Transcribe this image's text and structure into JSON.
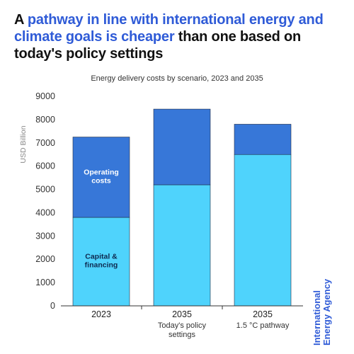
{
  "headline": {
    "lead": "A ",
    "highlight": "pathway in line with international energy and climate goals is cheaper",
    "tail": " than one based on today's policy settings"
  },
  "colors": {
    "highlight": "#2f5bd7",
    "capital": "#4fd3fc",
    "operating": "#3777d8"
  },
  "chart_data": {
    "type": "bar",
    "stacked": true,
    "title": "Energy delivery costs by scenario, 2023 and 2035",
    "ylabel": "USD Billion",
    "xlabel": "",
    "ylim": [
      0,
      9000
    ],
    "yticks": [
      0,
      1000,
      2000,
      3000,
      4000,
      5000,
      6000,
      7000,
      8000,
      9000
    ],
    "categories": [
      {
        "year": "2023",
        "label": ""
      },
      {
        "year": "2035",
        "label": "Today's policy settings"
      },
      {
        "year": "2035",
        "label": "1.5 °C pathway"
      }
    ],
    "series": [
      {
        "name": "Capital & financing",
        "color": "#4fd3fc",
        "values": [
          3800,
          5200,
          6500
        ]
      },
      {
        "name": "Operating costs",
        "color": "#3777d8",
        "values": [
          3450,
          3250,
          1300
        ]
      }
    ],
    "legend": "inline labels on first bar",
    "grid": false
  },
  "logo": {
    "text": "International Energy Agency"
  }
}
